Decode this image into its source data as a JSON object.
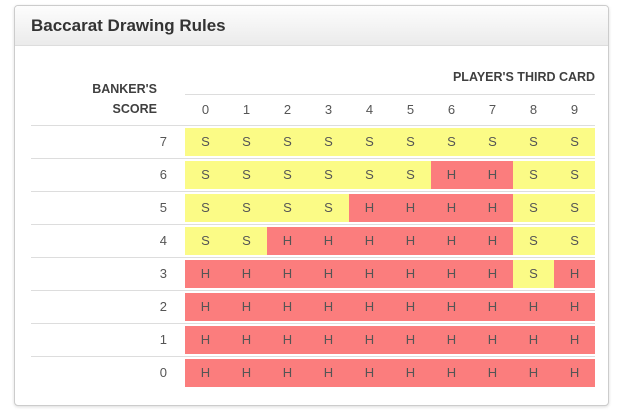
{
  "panel": {
    "title": "Baccarat Drawing Rules"
  },
  "table": {
    "corner_label_line1": "BANKER'S",
    "corner_label_line2": "SCORE",
    "top_header": "PLAYER'S THIRD CARD",
    "columns": [
      "0",
      "1",
      "2",
      "3",
      "4",
      "5",
      "6",
      "7",
      "8",
      "9"
    ],
    "rows": [
      {
        "score": "7",
        "cells": [
          "S",
          "S",
          "S",
          "S",
          "S",
          "S",
          "S",
          "S",
          "S",
          "S"
        ]
      },
      {
        "score": "6",
        "cells": [
          "S",
          "S",
          "S",
          "S",
          "S",
          "S",
          "H",
          "H",
          "S",
          "S"
        ]
      },
      {
        "score": "5",
        "cells": [
          "S",
          "S",
          "S",
          "S",
          "H",
          "H",
          "H",
          "H",
          "S",
          "S"
        ]
      },
      {
        "score": "4",
        "cells": [
          "S",
          "S",
          "H",
          "H",
          "H",
          "H",
          "H",
          "H",
          "S",
          "S"
        ]
      },
      {
        "score": "3",
        "cells": [
          "H",
          "H",
          "H",
          "H",
          "H",
          "H",
          "H",
          "H",
          "S",
          "H"
        ]
      },
      {
        "score": "2",
        "cells": [
          "H",
          "H",
          "H",
          "H",
          "H",
          "H",
          "H",
          "H",
          "H",
          "H"
        ]
      },
      {
        "score": "1",
        "cells": [
          "H",
          "H",
          "H",
          "H",
          "H",
          "H",
          "H",
          "H",
          "H",
          "H"
        ]
      },
      {
        "score": "0",
        "cells": [
          "H",
          "H",
          "H",
          "H",
          "H",
          "H",
          "H",
          "H",
          "H",
          "H"
        ]
      }
    ]
  },
  "colors": {
    "stand_bg": "#fbfb86",
    "hit_bg": "#fb7d7d",
    "panel_border": "#cccccc",
    "row_border": "#dddddd",
    "heading_bg_top": "#fdfdfd",
    "heading_bg_bottom": "#ebebeb",
    "title_text": "#333333",
    "header_text": "#3f3f3f",
    "cell_text": "#555555",
    "page_bg": "#ffffff"
  }
}
